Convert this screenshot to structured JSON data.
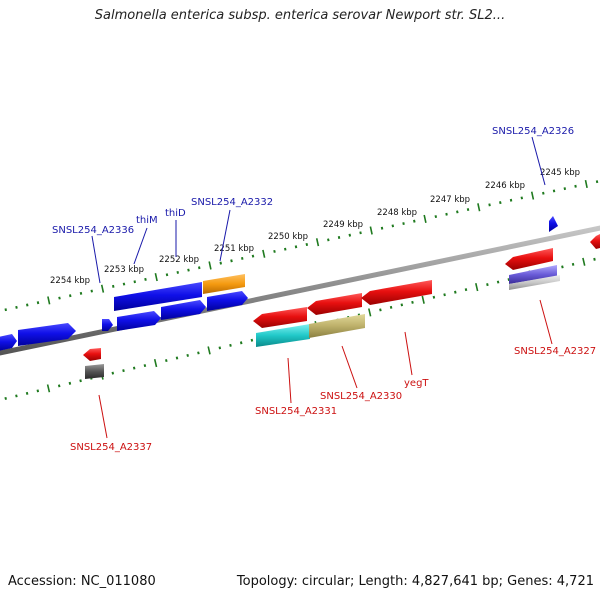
{
  "title": "Salmonella enterica subsp. enterica serovar Newport str. SL2...",
  "footer": {
    "accession": "Accession: NC_011080",
    "summary": "Topology: circular; Length: 4,827,641 bp; Genes: 4,721"
  },
  "colors": {
    "forward_gene": "#1010e8",
    "reverse_gene": "#e81010",
    "forward_label": "#1a1aaa",
    "reverse_label": "#cc1111",
    "backbone": "#8a8a8a",
    "tick": "#1f7a1f"
  },
  "kbp_ticks": [
    "2245 kbp",
    "2246 kbp",
    "2247 kbp",
    "2248 kbp",
    "2249 kbp",
    "2250 kbp",
    "2251 kbp",
    "2252 kbp",
    "2253 kbp",
    "2254 kbp"
  ],
  "forward_labels": [
    "SNSL254_A2326",
    "SNSL254_A2332",
    "thiD",
    "thiM",
    "SNSL254_A2336"
  ],
  "reverse_labels": [
    "SNSL254_A2327",
    "yegT",
    "SNSL254_A2330",
    "SNSL254_A2331",
    "SNSL254_A2337"
  ]
}
